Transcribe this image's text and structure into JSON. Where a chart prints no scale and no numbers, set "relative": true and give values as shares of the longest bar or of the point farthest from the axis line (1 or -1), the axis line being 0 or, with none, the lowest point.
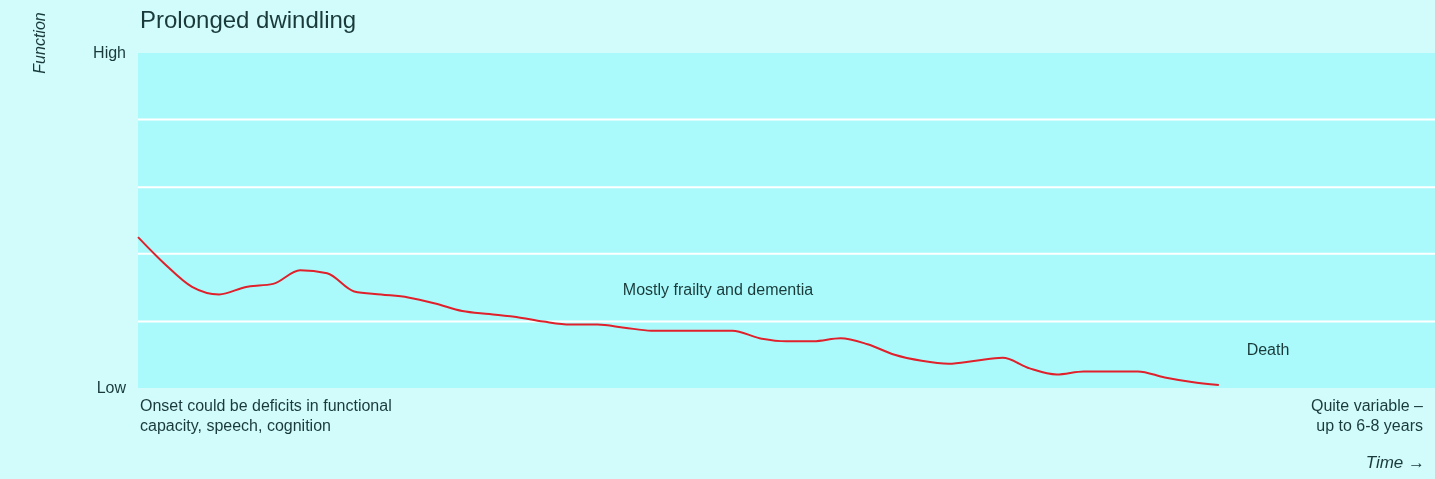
{
  "chart_data": {
    "type": "line",
    "title": "Prolonged dwindling",
    "xlabel": "Time →",
    "relative": true,
    "categories": [
      null,
      null,
      null,
      null,
      null,
      null,
      null,
      null,
      null,
      null,
      null,
      null,
      null,
      null,
      null,
      null,
      null,
      null,
      null,
      null,
      null,
      null,
      null,
      null,
      null,
      null,
      null,
      null,
      null,
      null,
      null,
      null,
      null,
      null,
      null,
      null,
      null,
      null,
      null,
      null,
      null,
      null,
      null,
      null,
      null,
      null,
      null,
      null,
      null
    ],
    "series": [
      {
        "color": "#e0202a",
        "values": [
          1,
          0.82,
          0.67,
          0.62,
          0.67,
          0.69,
          0.78,
          0.76,
          0.64,
          0.62,
          0.6,
          0.56,
          0.51,
          0.49,
          0.47,
          0.44,
          0.42,
          0.42,
          0.4,
          0.38,
          0.38,
          0.38,
          0.38,
          0.33,
          0.31,
          0.31,
          0.33,
          0.29,
          0.22,
          0.18,
          0.16,
          0.18,
          0.2,
          0.13,
          0.09,
          0.11,
          0.11,
          0.11,
          0.07,
          0.04,
          0.02,
          null,
          null,
          null,
          null,
          null,
          null,
          null,
          null
        ]
      }
    ],
    "marker": "none",
    "line_style": "solid",
    "ref_lines": [
      {
        "axis": "y",
        "value": 0.44,
        "color": "#ffffff"
      },
      {
        "axis": "y",
        "value": 0.89,
        "color": "#ffffff"
      },
      {
        "axis": "y",
        "value": 1.33,
        "color": "#ffffff"
      },
      {
        "axis": "y",
        "value": 1.78,
        "color": "#ffffff"
      }
    ],
    "annotations": [
      "Function",
      "High",
      "Low",
      "Mostly frailty and dementia",
      "Death",
      "Onset could be deficits in functional\ncapacity, speech, cognition",
      "Quite variable –\nup to 6-8 years"
    ]
  }
}
